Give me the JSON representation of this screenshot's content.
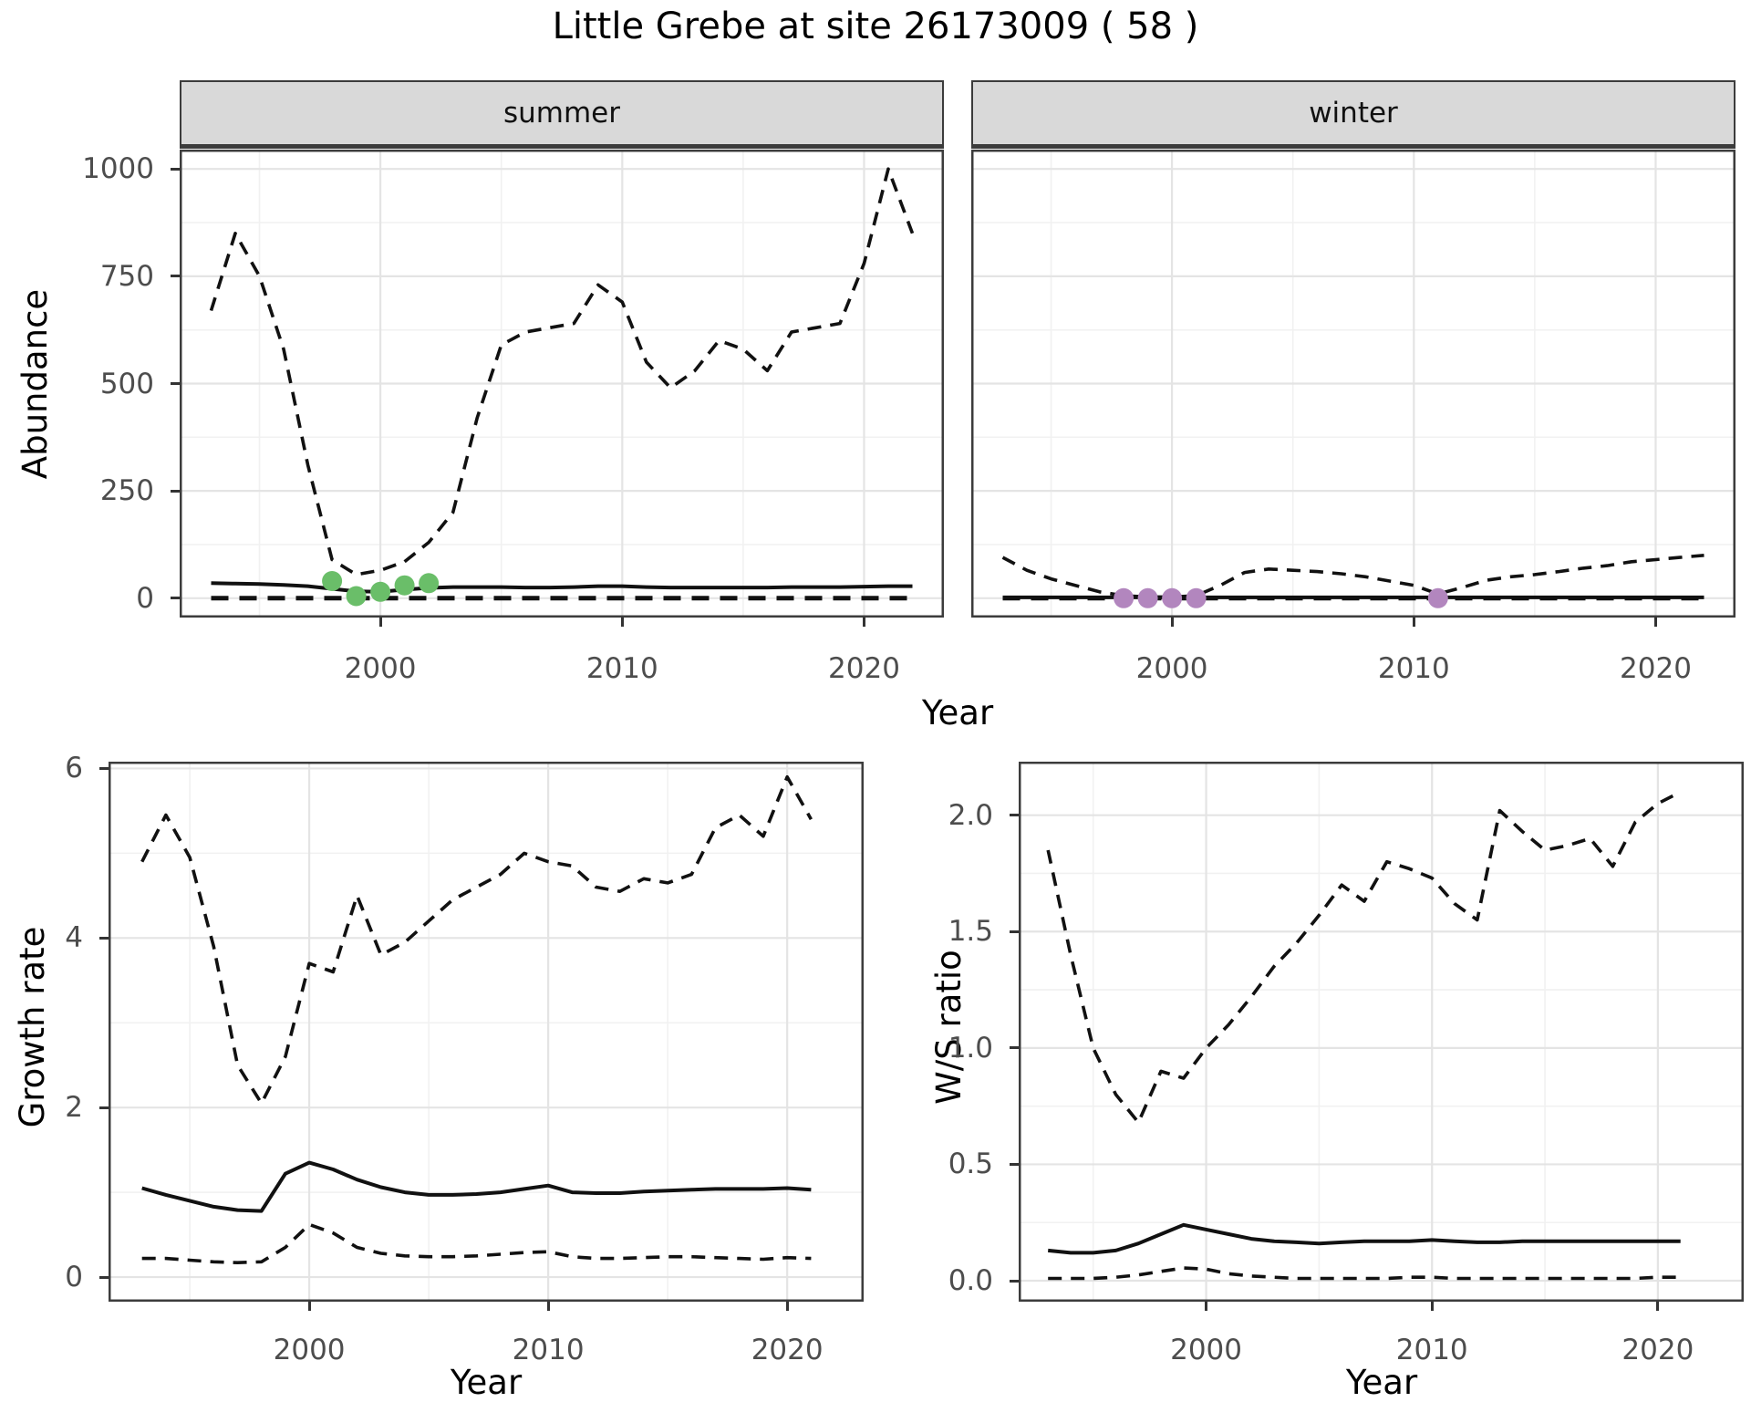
{
  "title": "Little Grebe at site 26173009 ( 58 )",
  "axis_labels": {
    "abundance_y": "Abundance",
    "top_x": "Year",
    "growth_y": "Growth rate",
    "growth_x": "Year",
    "ratio_y": "W/S ratio",
    "ratio_x": "Year"
  },
  "colors": {
    "observed_summer": "#6abe69",
    "observed_winter": "#b286be",
    "line": "#111111",
    "strip_bg": "#d9d9d9",
    "grid_major": "#e4e4e4",
    "grid_minor": "#f1f1f1",
    "panel_border": "#3c3c3c",
    "tick_text": "#4d4d4d"
  },
  "chart_data": [
    {
      "id": "abundance-summer",
      "type": "line",
      "facet_label": "summer",
      "title": "Little Grebe at site 26173009 ( 58 )",
      "xlabel": "Year",
      "ylabel": "Abundance",
      "x": [
        1993,
        1994,
        1995,
        1996,
        1997,
        1998,
        1999,
        2000,
        2001,
        2002,
        2003,
        2004,
        2005,
        2006,
        2007,
        2008,
        2009,
        2010,
        2011,
        2012,
        2013,
        2014,
        2015,
        2016,
        2017,
        2018,
        2019,
        2020,
        2021,
        2022
      ],
      "series": [
        {
          "name": "upper-ci",
          "style": "dashed",
          "values": [
            670,
            850,
            750,
            580,
            310,
            90,
            55,
            65,
            85,
            130,
            200,
            420,
            590,
            620,
            630,
            640,
            730,
            690,
            550,
            490,
            530,
            600,
            580,
            530,
            620,
            630,
            640,
            780,
            1000,
            850
          ]
        },
        {
          "name": "median",
          "style": "solid",
          "values": [
            35,
            34,
            33,
            31,
            28,
            22,
            16,
            15,
            20,
            24,
            26,
            26,
            26,
            25,
            25,
            26,
            28,
            28,
            26,
            25,
            25,
            25,
            25,
            25,
            26,
            26,
            26,
            27,
            28,
            28
          ]
        },
        {
          "name": "lower-ci",
          "style": "dashed-thick",
          "values": [
            0,
            0,
            0,
            0,
            0,
            0,
            0,
            0,
            0,
            0,
            0,
            0,
            0,
            0,
            0,
            0,
            0,
            0,
            0,
            0,
            0,
            0,
            0,
            0,
            0,
            0,
            0,
            0,
            0,
            0
          ]
        }
      ],
      "points": {
        "name": "observed-counts",
        "color_key": "observed_summer",
        "x": [
          1998,
          1999,
          2000,
          2001,
          2002
        ],
        "y": [
          40,
          5,
          15,
          30,
          35
        ]
      },
      "xlim": [
        1991.7,
        2023.3
      ],
      "ylim": [
        -45,
        1045
      ],
      "xticks": {
        "major": [
          2000,
          2010,
          2020
        ],
        "labels": [
          "2000",
          "2010",
          "2020"
        ],
        "minor": [
          1995,
          2005,
          2015
        ],
        "show_labels": true
      },
      "yticks": {
        "major": [
          0,
          250,
          500,
          750,
          1000
        ],
        "labels": [
          "0",
          "250",
          "500",
          "750",
          "1000"
        ],
        "minor": [
          125,
          375,
          625,
          875
        ],
        "show_labels": true
      }
    },
    {
      "id": "abundance-winter",
      "type": "line",
      "facet_label": "winter",
      "xlabel": "Year",
      "ylabel": "Abundance",
      "x": [
        1993,
        1994,
        1995,
        1996,
        1997,
        1998,
        1999,
        2000,
        2001,
        2002,
        2003,
        2004,
        2005,
        2006,
        2007,
        2008,
        2009,
        2010,
        2011,
        2012,
        2013,
        2014,
        2015,
        2016,
        2017,
        2018,
        2019,
        2020,
        2021,
        2022
      ],
      "series": [
        {
          "name": "upper-ci",
          "style": "dashed",
          "values": [
            95,
            65,
            45,
            30,
            15,
            6,
            3,
            3,
            6,
            30,
            60,
            68,
            65,
            62,
            57,
            50,
            40,
            30,
            10,
            25,
            42,
            50,
            55,
            62,
            70,
            76,
            85,
            90,
            95,
            100
          ]
        },
        {
          "name": "median",
          "style": "solid",
          "values": [
            2,
            2,
            2,
            2,
            2,
            2,
            2,
            2,
            2,
            2,
            2,
            2,
            2,
            2,
            2,
            2,
            2,
            2,
            2,
            2,
            2,
            2,
            2,
            2,
            2,
            2,
            2,
            2,
            2,
            2
          ]
        },
        {
          "name": "lower-ci",
          "style": "dashed-thick",
          "values": [
            0,
            0,
            0,
            0,
            0,
            0,
            0,
            0,
            0,
            0,
            0,
            0,
            0,
            0,
            0,
            0,
            0,
            0,
            0,
            0,
            0,
            0,
            0,
            0,
            0,
            0,
            0,
            0,
            0,
            0
          ]
        }
      ],
      "points": {
        "name": "observed-counts",
        "color_key": "observed_winter",
        "x": [
          1998,
          1999,
          2000,
          2001,
          2011
        ],
        "y": [
          0,
          0,
          0,
          0,
          0
        ]
      },
      "xlim": [
        1991.7,
        2023.3
      ],
      "ylim": [
        -45,
        1045
      ],
      "xticks": {
        "major": [
          2000,
          2010,
          2020
        ],
        "labels": [
          "2000",
          "2010",
          "2020"
        ],
        "minor": [
          1995,
          2005,
          2015
        ],
        "show_labels": true
      },
      "yticks": {
        "major": [
          0,
          250,
          500,
          750,
          1000
        ],
        "labels": [],
        "minor": [
          125,
          375,
          625,
          875
        ],
        "show_labels": false
      }
    },
    {
      "id": "growth-rate",
      "type": "line",
      "facet_label": "",
      "xlabel": "Year",
      "ylabel": "Growth rate",
      "x": [
        1993,
        1994,
        1995,
        1996,
        1997,
        1998,
        1999,
        2000,
        2001,
        2002,
        2003,
        2004,
        2005,
        2006,
        2007,
        2008,
        2009,
        2010,
        2011,
        2012,
        2013,
        2014,
        2015,
        2016,
        2017,
        2018,
        2019,
        2020,
        2021
      ],
      "series": [
        {
          "name": "upper-ci",
          "style": "dashed",
          "values": [
            4.9,
            5.45,
            4.95,
            3.9,
            2.5,
            2.05,
            2.6,
            3.7,
            3.6,
            4.5,
            3.8,
            3.95,
            4.2,
            4.45,
            4.6,
            4.75,
            5.0,
            4.9,
            4.85,
            4.6,
            4.55,
            4.7,
            4.65,
            4.75,
            5.3,
            5.45,
            5.2,
            5.9,
            5.4
          ]
        },
        {
          "name": "median",
          "style": "solid",
          "values": [
            1.05,
            0.97,
            0.9,
            0.83,
            0.79,
            0.78,
            1.22,
            1.35,
            1.27,
            1.15,
            1.06,
            1.0,
            0.97,
            0.97,
            0.98,
            1.0,
            1.04,
            1.08,
            1.0,
            0.99,
            0.99,
            1.01,
            1.02,
            1.03,
            1.04,
            1.04,
            1.04,
            1.05,
            1.03
          ]
        },
        {
          "name": "lower-ci",
          "style": "dashed",
          "values": [
            0.22,
            0.22,
            0.2,
            0.18,
            0.17,
            0.18,
            0.35,
            0.62,
            0.52,
            0.35,
            0.28,
            0.25,
            0.24,
            0.24,
            0.25,
            0.27,
            0.29,
            0.3,
            0.24,
            0.22,
            0.22,
            0.23,
            0.24,
            0.24,
            0.23,
            0.22,
            0.21,
            0.23,
            0.22
          ]
        }
      ],
      "points": null,
      "xlim": [
        1991.6,
        2023.2
      ],
      "ylim": [
        -0.29,
        6.08
      ],
      "xticks": {
        "major": [
          2000,
          2010,
          2020
        ],
        "labels": [
          "2000",
          "2010",
          "2020"
        ],
        "minor": [
          1995,
          2005,
          2015
        ],
        "show_labels": true
      },
      "yticks": {
        "major": [
          0,
          2,
          4,
          6
        ],
        "labels": [
          "0",
          "2",
          "4",
          "6"
        ],
        "minor": [
          1,
          3,
          5
        ],
        "show_labels": true
      }
    },
    {
      "id": "ws-ratio",
      "type": "line",
      "facet_label": "",
      "xlabel": "Year",
      "ylabel": "W/S ratio",
      "x": [
        1993,
        1994,
        1995,
        1996,
        1997,
        1998,
        1999,
        2000,
        2001,
        2002,
        2003,
        2004,
        2005,
        2006,
        2007,
        2008,
        2009,
        2010,
        2011,
        2012,
        2013,
        2014,
        2015,
        2016,
        2017,
        2018,
        2019,
        2020,
        2021
      ],
      "series": [
        {
          "name": "upper-ci",
          "style": "dashed",
          "values": [
            1.85,
            1.4,
            1.0,
            0.8,
            0.68,
            0.9,
            0.87,
            1.0,
            1.1,
            1.22,
            1.35,
            1.45,
            1.57,
            1.7,
            1.63,
            1.8,
            1.77,
            1.73,
            1.62,
            1.55,
            2.02,
            1.93,
            1.85,
            1.87,
            1.9,
            1.78,
            1.97,
            2.05,
            2.1
          ]
        },
        {
          "name": "median",
          "style": "solid",
          "values": [
            0.13,
            0.12,
            0.12,
            0.13,
            0.16,
            0.2,
            0.24,
            0.22,
            0.2,
            0.18,
            0.17,
            0.165,
            0.16,
            0.165,
            0.17,
            0.17,
            0.17,
            0.175,
            0.17,
            0.165,
            0.165,
            0.17,
            0.17,
            0.17,
            0.17,
            0.17,
            0.17,
            0.17,
            0.17
          ]
        },
        {
          "name": "lower-ci",
          "style": "dashed",
          "values": [
            0.01,
            0.01,
            0.01,
            0.015,
            0.025,
            0.04,
            0.055,
            0.05,
            0.03,
            0.02,
            0.015,
            0.01,
            0.01,
            0.01,
            0.01,
            0.01,
            0.015,
            0.015,
            0.01,
            0.01,
            0.01,
            0.01,
            0.01,
            0.01,
            0.01,
            0.01,
            0.01,
            0.015,
            0.015
          ]
        }
      ],
      "points": null,
      "xlim": [
        1991.7,
        2023.8
      ],
      "ylim": [
        -0.09,
        2.23
      ],
      "xticks": {
        "major": [
          2000,
          2010,
          2020
        ],
        "labels": [
          "2000",
          "2010",
          "2020"
        ],
        "minor": [
          1995,
          2005,
          2015
        ],
        "show_labels": true
      },
      "yticks": {
        "major": [
          0,
          0.5,
          1,
          1.5,
          2
        ],
        "labels": [
          "0.0",
          "0.5",
          "1.0",
          "1.5",
          "2.0"
        ],
        "minor": [
          0.25,
          0.75,
          1.25,
          1.75,
          2.25
        ],
        "show_labels": true
      }
    }
  ]
}
